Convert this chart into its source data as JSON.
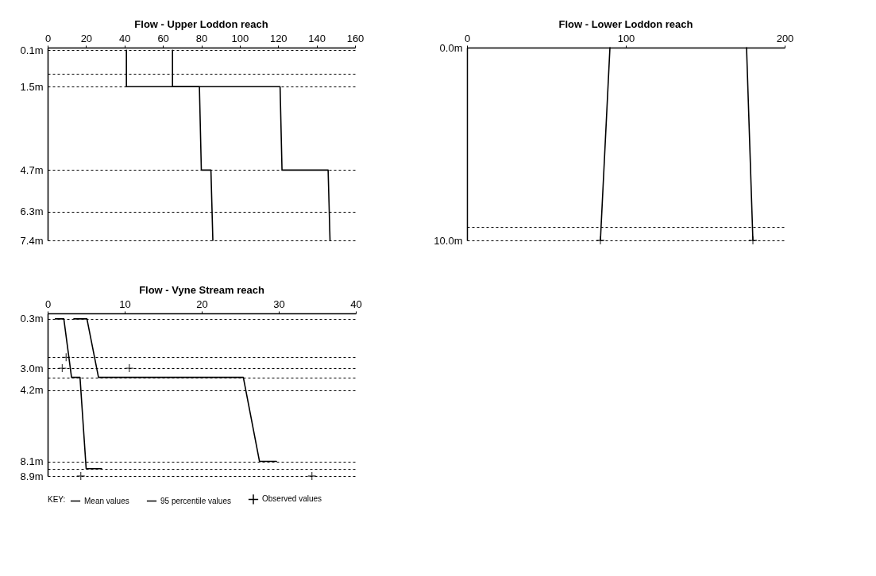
{
  "chart_data": [
    {
      "type": "line",
      "title": "Flow - Upper Loddon reach",
      "xlim": [
        0,
        160
      ],
      "xticks": [
        0,
        20,
        40,
        60,
        80,
        100,
        120,
        140,
        160
      ],
      "ylim": [
        7.4,
        0.0
      ],
      "yticks": [
        {
          "value": 0.1,
          "label": "0.1m"
        },
        {
          "value": 1.0,
          "label": null
        },
        {
          "value": 1.5,
          "label": "1.5m"
        },
        {
          "value": 4.7,
          "label": "4.7m"
        },
        {
          "value": 6.3,
          "label": "6.3m"
        },
        {
          "value": 7.4,
          "label": "7.4m"
        }
      ],
      "grid": "y",
      "series": [
        {
          "type": "line",
          "color": "#000000",
          "x": [
            41,
            41,
            79,
            80,
            85,
            86
          ],
          "values": [
            0.1,
            1.5,
            1.5,
            4.7,
            4.7,
            7.4
          ]
        },
        {
          "type": "line",
          "color": "#000000",
          "x": [
            65,
            65,
            121,
            122,
            146,
            147
          ],
          "values": [
            0.1,
            1.5,
            1.5,
            4.7,
            4.7,
            7.4
          ]
        }
      ]
    },
    {
      "type": "line",
      "title": "Flow - Lower Loddon reach",
      "xlim": [
        0,
        200
      ],
      "xticks": [
        0,
        100,
        200
      ],
      "ylim": [
        10.0,
        0.0
      ],
      "yticks": [
        {
          "value": 0.0,
          "label": "0.0m"
        },
        {
          "value": 9.3,
          "label": null
        },
        {
          "value": 10.0,
          "label": "10.0m"
        }
      ],
      "grid": "y",
      "series": [
        {
          "type": "line",
          "color": "#000000",
          "x": [
            90,
            84
          ],
          "values": [
            0.0,
            10.0
          ]
        },
        {
          "type": "line",
          "color": "#000000",
          "x": [
            176,
            180
          ],
          "values": [
            0.0,
            10.0
          ]
        },
        {
          "type": "scatter",
          "marker": "cross",
          "color": "#000000",
          "x": [
            84,
            180
          ],
          "values": [
            10.0,
            10.0
          ]
        }
      ]
    },
    {
      "type": "line",
      "title": "Flow - Vyne Stream reach",
      "xlim": [
        0,
        40
      ],
      "xticks": [
        0,
        10,
        20,
        30,
        40
      ],
      "ylim": [
        8.9,
        0.0
      ],
      "yticks": [
        {
          "value": 0.3,
          "label": "0.3m"
        },
        {
          "value": 2.4,
          "label": null
        },
        {
          "value": 3.0,
          "label": "3.0m"
        },
        {
          "value": 3.5,
          "label": null
        },
        {
          "value": 4.2,
          "label": "4.2m"
        },
        {
          "value": 8.1,
          "label": "8.1m"
        },
        {
          "value": 8.5,
          "label": null
        },
        {
          "value": 8.9,
          "label": "8.9m"
        }
      ],
      "grid": "y",
      "legend": "bottom",
      "legend_title": "KEY:",
      "series": [
        {
          "name": "Mean values",
          "type": "line",
          "color": "#000000",
          "x": [
            1.0,
            2.1,
            3.1,
            4.2,
            5.0,
            7.0
          ],
          "values": [
            0.3,
            0.3,
            3.5,
            3.5,
            8.5,
            8.5
          ]
        },
        {
          "name": "95 percentile values",
          "type": "line",
          "color": "#000000",
          "x": [
            3.4,
            5.1,
            6.6,
            25.4,
            27.5,
            29.7
          ],
          "values": [
            0.3,
            0.3,
            3.5,
            3.5,
            8.1,
            8.1
          ]
        },
        {
          "name": "Observed values",
          "type": "scatter",
          "marker": "cross",
          "color": "#000000",
          "x": [
            2.4,
            1.9,
            10.6,
            4.3,
            34.3
          ],
          "values": [
            2.4,
            3.0,
            3.0,
            8.9,
            8.9
          ]
        }
      ]
    }
  ]
}
